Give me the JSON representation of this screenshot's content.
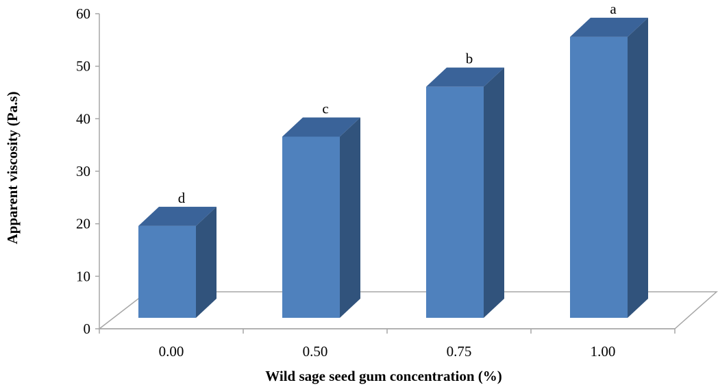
{
  "chart_data": {
    "type": "bar",
    "style": "3d-column",
    "categories": [
      "0.00",
      "0.50",
      "0.75",
      "1.00"
    ],
    "values": [
      17.5,
      34.5,
      44,
      53.5
    ],
    "data_labels": [
      "d",
      "c",
      "b",
      "a"
    ],
    "xlabel": "Wild sage seed gum concentration (%)",
    "ylabel": "Apparent viscosity (Pa.s)",
    "ylim": [
      0,
      60
    ],
    "yticks": [
      "0",
      "10",
      "20",
      "30",
      "40",
      "50",
      "60"
    ],
    "grid": false,
    "legend": "none",
    "colors": {
      "front": "#4F81BD",
      "side": "#31537C",
      "top": "#3A6399",
      "axis": "#A6A6A6",
      "floor": "#A6A6A6"
    }
  }
}
